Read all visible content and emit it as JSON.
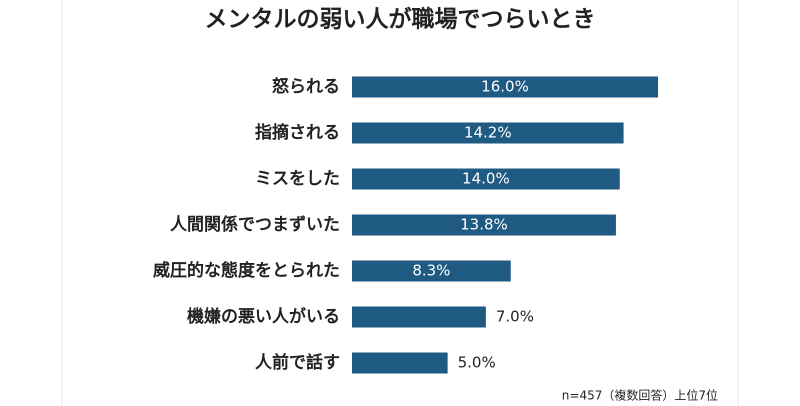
{
  "chart_data": {
    "type": "bar",
    "orientation": "horizontal",
    "title": "メンタルの弱い人が職場でつらいとき",
    "categories": [
      "怒られる",
      "指摘される",
      "ミスをした",
      "人間関係でつまずいた",
      "威圧的な態度をとられた",
      "機嫌の悪い人がいる",
      "人前で話す"
    ],
    "values": [
      16.0,
      14.2,
      14.0,
      13.8,
      8.3,
      7.0,
      5.0
    ],
    "value_labels": [
      "16.0%",
      "14.2%",
      "14.0%",
      "13.8%",
      "8.3%",
      "7.0%",
      "5.0%"
    ],
    "color": "#1f5a82",
    "note": "n=457（複数回答）上位7位"
  }
}
